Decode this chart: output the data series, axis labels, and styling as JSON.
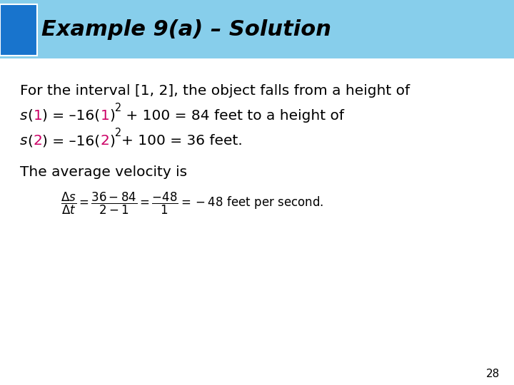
{
  "title": "Example 9(a) – Solution",
  "title_color": "#000000",
  "title_bg_color": "#87CEEB",
  "title_dark_box_color": "#1874CD",
  "background_color": "#FFFFFF",
  "body_text_color": "#000000",
  "highlight_color": "#CC0066",
  "page_number": "28",
  "line1": "For the interval [1, 2], the object falls from a height of",
  "line2_parts": [
    {
      "text": "s",
      "style": "italic",
      "color": "#000000"
    },
    {
      "text": "(",
      "style": "normal",
      "color": "#000000"
    },
    {
      "text": "1",
      "style": "normal",
      "color": "#CC0066"
    },
    {
      "text": ") = –16(",
      "style": "normal",
      "color": "#000000"
    },
    {
      "text": "1",
      "style": "normal",
      "color": "#CC0066"
    },
    {
      "text": ")",
      "style": "normal",
      "color": "#000000"
    },
    {
      "text": "2",
      "style": "superscript",
      "color": "#000000"
    },
    {
      "text": " + 100 = 84 feet to a height of",
      "style": "normal",
      "color": "#000000"
    }
  ],
  "line3_parts": [
    {
      "text": "s",
      "style": "italic",
      "color": "#000000"
    },
    {
      "text": "(",
      "style": "normal",
      "color": "#000000"
    },
    {
      "text": "2",
      "style": "normal",
      "color": "#CC0066"
    },
    {
      "text": ") = –16(",
      "style": "normal",
      "color": "#000000"
    },
    {
      "text": "2",
      "style": "normal",
      "color": "#CC0066"
    },
    {
      "text": ")",
      "style": "normal",
      "color": "#000000"
    },
    {
      "text": "2",
      "style": "superscript",
      "color": "#000000"
    },
    {
      "text": "+ 100 = 36 feet.",
      "style": "normal",
      "color": "#000000"
    }
  ],
  "line4": "The average velocity is",
  "figsize": [
    7.2,
    5.4
  ],
  "dpi": 100
}
